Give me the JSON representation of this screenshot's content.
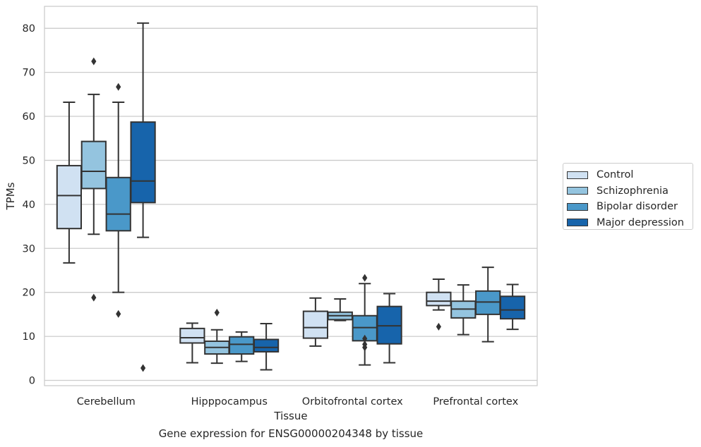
{
  "chart_data": {
    "type": "box",
    "title": "",
    "xlabel": "Tissue",
    "ylabel": "TPMs",
    "caption": "Gene expression for ENSG00000204348 by tissue",
    "ylim": [
      -1.2,
      85
    ],
    "yticks": [
      0,
      10,
      20,
      30,
      40,
      50,
      60,
      70,
      80
    ],
    "categories": [
      "Cerebellum",
      "Hipppocampus",
      "Orbitofrontal cortex",
      "Prefrontal cortex"
    ],
    "grid": "horizontal",
    "legend_position": "right",
    "series": [
      {
        "name": "Control",
        "color": "#d0e1f2",
        "boxes": [
          {
            "whislo": 26.7,
            "q1": 34.5,
            "med": 42.0,
            "q3": 48.8,
            "whishi": 63.2,
            "fliers": []
          },
          {
            "whislo": 4.0,
            "q1": 8.5,
            "med": 9.7,
            "q3": 11.8,
            "whishi": 13.0,
            "fliers": []
          },
          {
            "whislo": 7.8,
            "q1": 9.6,
            "med": 12.0,
            "q3": 15.7,
            "whishi": 18.7,
            "fliers": []
          },
          {
            "whislo": 16.0,
            "q1": 17.0,
            "med": 18.0,
            "q3": 20.0,
            "whishi": 23.0,
            "fliers": [
              12.2
            ]
          }
        ]
      },
      {
        "name": "Schizophrenia",
        "color": "#94c4df",
        "boxes": [
          {
            "whislo": 33.2,
            "q1": 43.6,
            "med": 47.5,
            "q3": 54.3,
            "whishi": 65.0,
            "fliers": [
              72.5,
              18.8
            ]
          },
          {
            "whislo": 3.9,
            "q1": 6.0,
            "med": 7.5,
            "q3": 8.9,
            "whishi": 11.5,
            "fliers": [
              15.4
            ]
          },
          {
            "whislo": 13.6,
            "q1": 13.8,
            "med": 14.7,
            "q3": 15.5,
            "whishi": 18.5,
            "fliers": []
          },
          {
            "whislo": 10.4,
            "q1": 14.2,
            "med": 16.2,
            "q3": 18.0,
            "whishi": 21.7,
            "fliers": []
          }
        ]
      },
      {
        "name": "Bipolar disorder",
        "color": "#4a98c9",
        "boxes": [
          {
            "whislo": 20.0,
            "q1": 34.0,
            "med": 37.8,
            "q3": 46.1,
            "whishi": 63.2,
            "fliers": [
              66.7,
              15.1
            ]
          },
          {
            "whislo": 4.3,
            "q1": 6.0,
            "med": 8.2,
            "q3": 9.9,
            "whishi": 11.0,
            "fliers": []
          },
          {
            "whislo": 3.5,
            "q1": 9.0,
            "med": 12.0,
            "q3": 14.7,
            "whishi": 22.0,
            "fliers": [
              23.3,
              9.5,
              8.2,
              7.5
            ]
          },
          {
            "whislo": 8.8,
            "q1": 15.0,
            "med": 17.8,
            "q3": 20.3,
            "whishi": 25.7,
            "fliers": []
          }
        ]
      },
      {
        "name": "Major depression",
        "color": "#1764ab",
        "boxes": [
          {
            "whislo": 32.5,
            "q1": 40.4,
            "med": 45.3,
            "q3": 58.7,
            "whishi": 81.2,
            "fliers": [
              2.8
            ]
          },
          {
            "whislo": 2.4,
            "q1": 6.5,
            "med": 7.5,
            "q3": 9.3,
            "whishi": 12.9,
            "fliers": []
          },
          {
            "whislo": 4.0,
            "q1": 8.3,
            "med": 12.4,
            "q3": 16.8,
            "whishi": 19.7,
            "fliers": []
          },
          {
            "whislo": 11.6,
            "q1": 14.0,
            "med": 16.0,
            "q3": 19.1,
            "whishi": 21.8,
            "fliers": []
          }
        ]
      }
    ]
  }
}
